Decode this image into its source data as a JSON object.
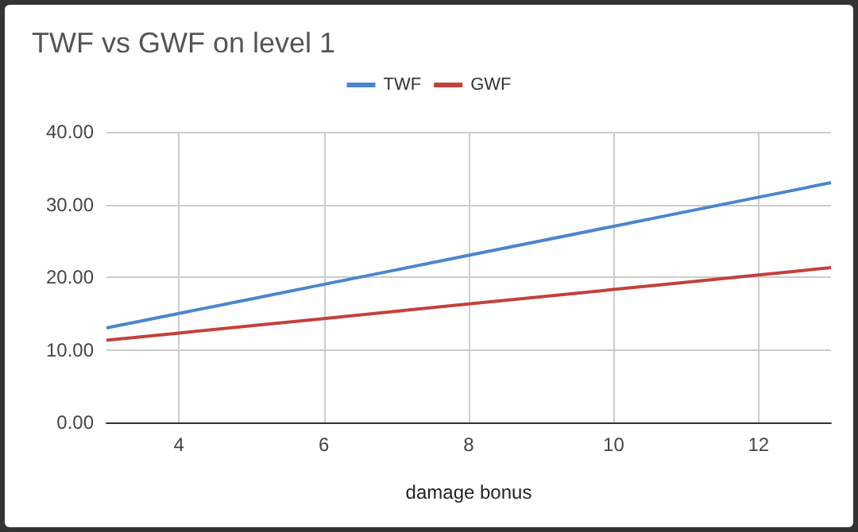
{
  "chart_data": {
    "type": "line",
    "title": "TWF vs GWF on level 1",
    "xlabel": "damage bonus",
    "x": [
      3,
      4,
      5,
      6,
      7,
      8,
      9,
      10,
      11,
      12,
      13
    ],
    "series": [
      {
        "name": "TWF",
        "color": "#4a86d0",
        "values": [
          13,
          15,
          17,
          19,
          21,
          23,
          25,
          27,
          29,
          31,
          33
        ]
      },
      {
        "name": "GWF",
        "color": "#c5403a",
        "values": [
          11.3,
          12.3,
          13.3,
          14.3,
          15.3,
          16.3,
          17.3,
          18.3,
          19.3,
          20.3,
          21.3
        ]
      }
    ],
    "xlim": [
      3,
      13
    ],
    "xticks": [
      4,
      6,
      8,
      10,
      12
    ],
    "ylim": [
      0,
      40
    ],
    "yticks": [
      {
        "value": 0,
        "label": "0.00"
      },
      {
        "value": 10,
        "label": "10.00"
      },
      {
        "value": 20,
        "label": "20.00"
      },
      {
        "value": 30,
        "label": "30.00"
      },
      {
        "value": 40,
        "label": "40.00"
      }
    ],
    "grid": true,
    "legend": "top",
    "marker": "none",
    "line_style": "solid"
  }
}
